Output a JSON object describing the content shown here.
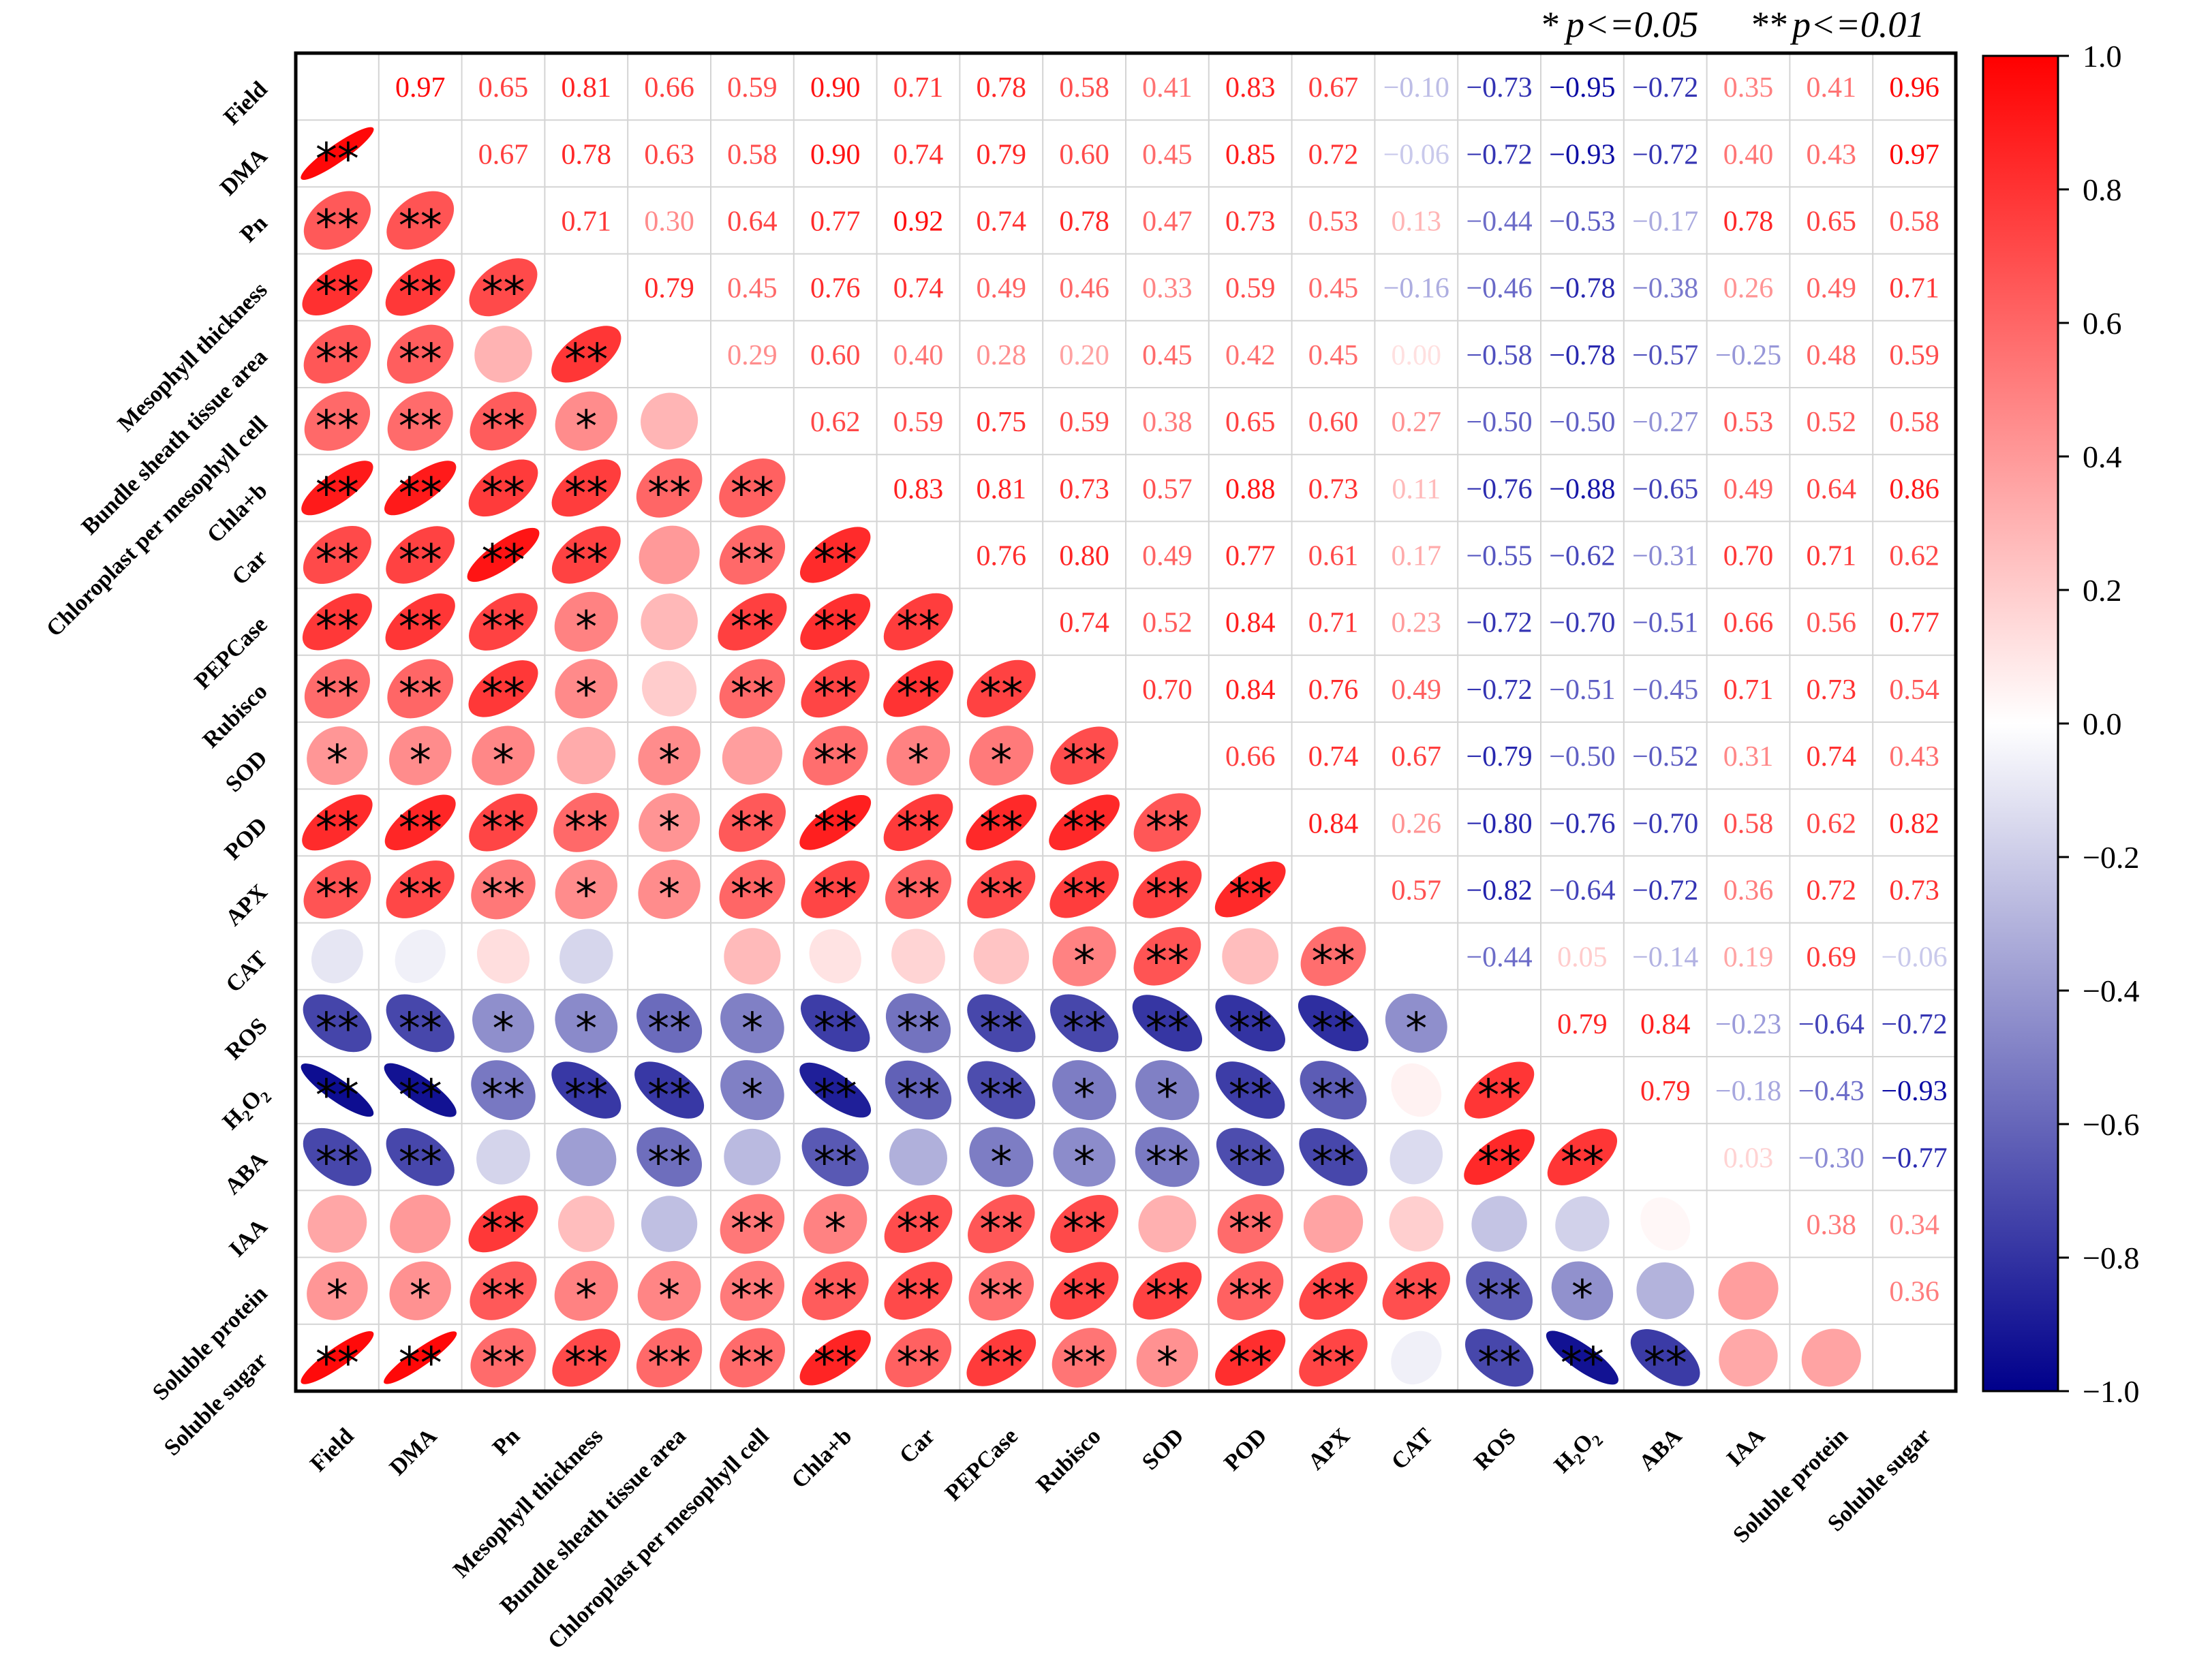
{
  "chart_data": {
    "type": "heatmap",
    "title": "",
    "significance_legend": {
      "single_star": "*",
      "single_label": "p<=0.05",
      "double_star": "**",
      "double_label": "p<=0.01"
    },
    "colorbar": {
      "min": -1.0,
      "max": 1.0,
      "ticks": [
        "1.0",
        "0.8",
        "0.6",
        "0.4",
        "0.2",
        "0.0",
        "−0.2",
        "−0.4",
        "−0.6",
        "−0.8",
        "−1.0"
      ],
      "colors": {
        "negative": "#00008B",
        "zero": "#FFFFFF",
        "positive": "#FF0000"
      }
    },
    "variables": [
      "Field",
      "DMA",
      "Pn",
      "Mesophyll thickness",
      "Bundle sheath tissue area",
      "Chloroplast per mesophyll cell",
      "Chla+b",
      "Car",
      "PEPCase",
      "Rubisco",
      "SOD",
      "POD",
      "APX",
      "CAT",
      "ROS",
      "H2O2",
      "ABA",
      "IAA",
      "Soluble protein",
      "Soluble sugar"
    ],
    "upper_triangle_labels": [
      [
        "0.97",
        "0.65",
        "0.81",
        "0.66",
        "0.59",
        "0.90",
        "0.71",
        "0.78",
        "0.58",
        "0.41",
        "0.83",
        "0.67",
        "−0.10",
        "−0.73",
        "−0.95",
        "−0.72",
        "0.35",
        "0.41",
        "0.96"
      ],
      [
        "0.67",
        "0.78",
        "0.63",
        "0.58",
        "0.90",
        "0.74",
        "0.79",
        "0.60",
        "0.45",
        "0.85",
        "0.72",
        "−0.06",
        "−0.72",
        "−0.93",
        "−0.72",
        "0.40",
        "0.43",
        "0.97"
      ],
      [
        "0.71",
        "0.30",
        "0.64",
        "0.77",
        "0.92",
        "0.74",
        "0.78",
        "0.47",
        "0.73",
        "0.53",
        "0.13",
        "−0.44",
        "−0.53",
        "−0.17",
        "0.78",
        "0.65",
        "0.58"
      ],
      [
        "0.79",
        "0.45",
        "0.76",
        "0.74",
        "0.49",
        "0.46",
        "0.33",
        "0.59",
        "0.45",
        "−0.16",
        "−0.46",
        "−0.78",
        "−0.38",
        "0.26",
        "0.49",
        "0.71"
      ],
      [
        "0.29",
        "0.60",
        "0.40",
        "0.28",
        "0.20",
        "0.45",
        "0.42",
        "0.45",
        "0.00",
        "−0.58",
        "−0.78",
        "−0.57",
        "−0.25",
        "0.48",
        "0.59"
      ],
      [
        "0.62",
        "0.59",
        "0.75",
        "0.59",
        "0.38",
        "0.65",
        "0.60",
        "0.27",
        "−0.50",
        "−0.50",
        "−0.27",
        "0.53",
        "0.52",
        "0.58"
      ],
      [
        "0.83",
        "0.81",
        "0.73",
        "0.57",
        "0.88",
        "0.73",
        "0.11",
        "−0.76",
        "−0.88",
        "−0.65",
        "0.49",
        "0.64",
        "0.86"
      ],
      [
        "0.76",
        "0.80",
        "0.49",
        "0.77",
        "0.61",
        "0.17",
        "−0.55",
        "−0.62",
        "−0.31",
        "0.70",
        "0.71",
        "0.62"
      ],
      [
        "0.74",
        "0.52",
        "0.84",
        "0.71",
        "0.23",
        "−0.72",
        "−0.70",
        "−0.51",
        "0.66",
        "0.56",
        "0.77"
      ],
      [
        "0.70",
        "0.84",
        "0.76",
        "0.49",
        "−0.72",
        "−0.51",
        "−0.45",
        "0.71",
        "0.73",
        "0.54"
      ],
      [
        "0.66",
        "0.74",
        "0.67",
        "−0.79",
        "−0.50",
        "−0.52",
        "0.31",
        "0.74",
        "0.43"
      ],
      [
        "0.84",
        "0.26",
        "−0.80",
        "−0.76",
        "−0.70",
        "0.58",
        "0.62",
        "0.82"
      ],
      [
        "0.57",
        "−0.82",
        "−0.64",
        "−0.72",
        "0.36",
        "0.72",
        "0.73"
      ],
      [
        "−0.44",
        "0.05",
        "−0.14",
        "0.19",
        "0.69",
        "−0.06"
      ],
      [
        "0.79",
        "0.84",
        "−0.23",
        "−0.64",
        "−0.72"
      ],
      [
        "0.79",
        "−0.18",
        "−0.43",
        "−0.93"
      ],
      [
        "0.03",
        "−0.30",
        "−0.77"
      ],
      [
        "0.38",
        "0.34"
      ],
      [
        "0.36"
      ]
    ],
    "significance_lower": [
      [
        "**"
      ],
      [
        "**",
        "**"
      ],
      [
        "**",
        "**",
        "**"
      ],
      [
        "**",
        "**",
        "",
        "**"
      ],
      [
        "**",
        "**",
        "**",
        "*",
        ""
      ],
      [
        "**",
        "**",
        "**",
        "**",
        "**",
        "**"
      ],
      [
        "**",
        "**",
        "**",
        "**",
        "",
        "**",
        "**"
      ],
      [
        "**",
        "**",
        "**",
        "*",
        "",
        "**",
        "**",
        "**"
      ],
      [
        "**",
        "**",
        "**",
        "*",
        "",
        "**",
        "**",
        "**",
        "**"
      ],
      [
        "*",
        "*",
        "*",
        "",
        "*",
        "",
        "**",
        "*",
        "*",
        "**"
      ],
      [
        "**",
        "**",
        "**",
        "**",
        "*",
        "**",
        "**",
        "**",
        "**",
        "**",
        "**"
      ],
      [
        "**",
        "**",
        "**",
        "*",
        "*",
        "**",
        "**",
        "**",
        "**",
        "**",
        "**",
        "**"
      ],
      [
        "",
        "",
        "",
        "",
        "",
        "",
        "",
        "",
        "",
        "*",
        "**",
        "",
        "**"
      ],
      [
        "**",
        "**",
        "*",
        "*",
        "**",
        "*",
        "**",
        "**",
        "**",
        "**",
        "**",
        "**",
        "**",
        "*"
      ],
      [
        "**",
        "**",
        "**",
        "**",
        "**",
        "*",
        "**",
        "**",
        "**",
        "*",
        "*",
        "**",
        "**",
        "",
        "**"
      ],
      [
        "**",
        "**",
        "",
        "",
        "**",
        "",
        "**",
        "",
        "*",
        "*",
        "**",
        "**",
        "**",
        "",
        "**",
        "**"
      ],
      [
        "",
        "",
        "**",
        "",
        "",
        "**",
        "*",
        "**",
        "**",
        "**",
        "",
        "**",
        "",
        "",
        "",
        "",
        ""
      ],
      [
        "*",
        "*",
        "**",
        "*",
        "*",
        "**",
        "**",
        "**",
        "**",
        "**",
        "**",
        "**",
        "**",
        "**",
        "**",
        "*",
        "",
        ""
      ],
      [
        "**",
        "**",
        "**",
        "**",
        "**",
        "**",
        "**",
        "**",
        "**",
        "**",
        "*",
        "**",
        "**",
        "",
        "**",
        "**",
        "**",
        "",
        ""
      ]
    ]
  }
}
